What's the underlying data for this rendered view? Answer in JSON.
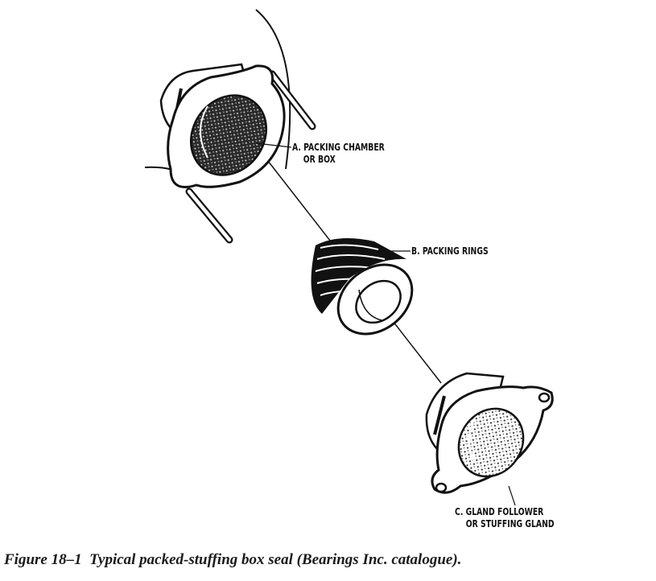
{
  "labels": {
    "a_line1": "A. PACKING CHAMBER",
    "a_line2": "OR BOX",
    "b_line1": "B. PACKING RINGS",
    "c_line1": "C. GLAND FOLLOWER",
    "c_line2": "OR STUFFING GLAND"
  },
  "caption": {
    "figure_number": "Figure 18–1",
    "text": "Typical packed-stuffing box seal (Bearings Inc. catalogue)."
  },
  "colors": {
    "ink": "#111111",
    "shade": "#2a2a2a",
    "paper": "#ffffff"
  }
}
